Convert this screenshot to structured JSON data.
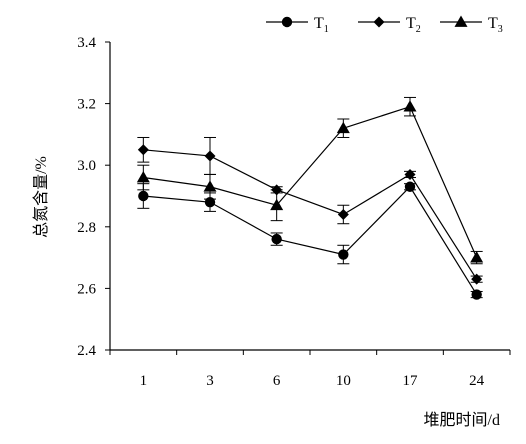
{
  "chart_data": {
    "type": "line",
    "xlabel": "堆肥时间/d",
    "ylabel": "总氮含量/%",
    "categories": [
      "1",
      "3",
      "6",
      "10",
      "17",
      "24"
    ],
    "ylim": [
      2.4,
      3.4
    ],
    "yticks": [
      "2.4",
      "2.6",
      "2.8",
      "3.0",
      "3.2",
      "3.4"
    ],
    "grid": false,
    "legend_position": "top-right",
    "series": [
      {
        "name": "T",
        "sub": "1",
        "marker": "circle",
        "values": [
          2.9,
          2.88,
          2.76,
          2.71,
          2.93,
          2.58
        ],
        "errors": [
          0.04,
          0.03,
          0.02,
          0.03,
          0.01,
          0.01
        ]
      },
      {
        "name": "T",
        "sub": "2",
        "marker": "diamond",
        "values": [
          3.05,
          3.03,
          2.92,
          2.84,
          2.97,
          2.63
        ],
        "errors": [
          0.04,
          0.06,
          0.01,
          0.03,
          0.01,
          0.01
        ]
      },
      {
        "name": "T",
        "sub": "3",
        "marker": "triangle",
        "values": [
          2.96,
          2.93,
          2.87,
          3.12,
          3.19,
          2.7
        ],
        "errors": [
          0.04,
          0.04,
          0.05,
          0.03,
          0.03,
          0.02
        ]
      }
    ]
  }
}
